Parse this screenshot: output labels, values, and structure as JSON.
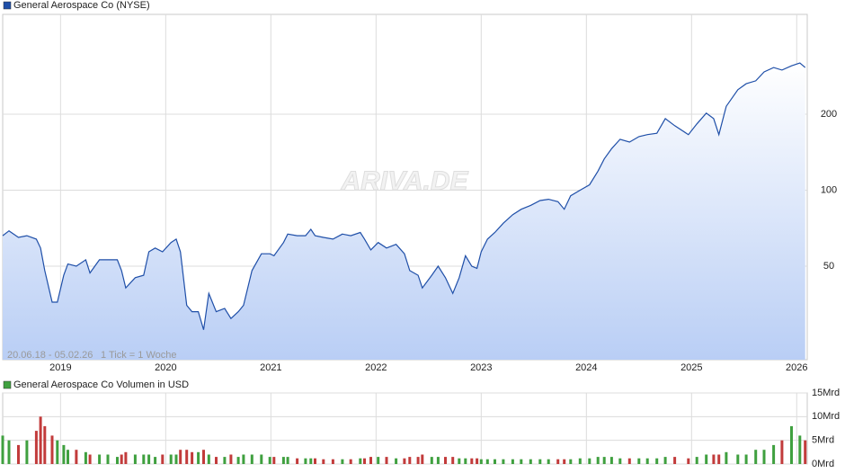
{
  "chart_data": [
    {
      "type": "area",
      "yscale": "log",
      "grid": true,
      "range_note": "20.06.18 - 05.02.26",
      "tick_note": "1 Tick = 1 Woche",
      "watermark": "ARIVA.DE",
      "xlim": [
        2018.45,
        2026.1
      ],
      "xticks": [
        2019,
        2020,
        2021,
        2022,
        2023,
        2024,
        2025,
        2026
      ],
      "ylim": [
        21.3,
        497
      ],
      "yticks": [
        50,
        100,
        200
      ],
      "x": [
        2018.45,
        2018.51,
        2018.6,
        2018.68,
        2018.77,
        2018.81,
        2018.85,
        2018.92,
        2018.97,
        2019.03,
        2019.07,
        2019.15,
        2019.24,
        2019.28,
        2019.37,
        2019.45,
        2019.54,
        2019.58,
        2019.62,
        2019.71,
        2019.79,
        2019.84,
        2019.9,
        2019.97,
        2020.05,
        2020.1,
        2020.14,
        2020.2,
        2020.25,
        2020.31,
        2020.36,
        2020.41,
        2020.48,
        2020.56,
        2020.62,
        2020.69,
        2020.74,
        2020.82,
        2020.91,
        2020.99,
        2021.03,
        2021.12,
        2021.16,
        2021.25,
        2021.33,
        2021.38,
        2021.42,
        2021.5,
        2021.59,
        2021.68,
        2021.76,
        2021.85,
        2021.89,
        2021.95,
        2022.02,
        2022.1,
        2022.19,
        2022.27,
        2022.32,
        2022.4,
        2022.44,
        2022.53,
        2022.59,
        2022.66,
        2022.73,
        2022.79,
        2022.85,
        2022.91,
        2022.96,
        2023.0,
        2023.06,
        2023.13,
        2023.21,
        2023.3,
        2023.38,
        2023.47,
        2023.56,
        2023.64,
        2023.73,
        2023.79,
        2023.85,
        2023.94,
        2024.03,
        2024.11,
        2024.17,
        2024.24,
        2024.32,
        2024.41,
        2024.5,
        2024.58,
        2024.67,
        2024.75,
        2024.84,
        2024.97,
        2025.05,
        2025.14,
        2025.21,
        2025.26,
        2025.33,
        2025.44,
        2025.52,
        2025.61,
        2025.69,
        2025.78,
        2025.86,
        2025.95,
        2026.03,
        2026.08
      ],
      "series": [
        {
          "name": "General Aerospace Co (NYSE)",
          "color": "#1f4fa8",
          "fill": "#b9cef5",
          "values": [
            66,
            69,
            65,
            66,
            64,
            59,
            48,
            36,
            36,
            46,
            51,
            50,
            53,
            47,
            53,
            53,
            53,
            48,
            41,
            45,
            46,
            57,
            59,
            57,
            62,
            64,
            57,
            35,
            33,
            33,
            28,
            39,
            33,
            34,
            31,
            33,
            35,
            48,
            56,
            56,
            55,
            62,
            67,
            66,
            66,
            70,
            66,
            65,
            64,
            67,
            66,
            68,
            64,
            58,
            62,
            59,
            61,
            56,
            48,
            46,
            41,
            46,
            50,
            45,
            39,
            45,
            55,
            50,
            49,
            57,
            64,
            68,
            74,
            80,
            84,
            87,
            91,
            92,
            90,
            84,
            95,
            100,
            105,
            119,
            133,
            146,
            159,
            155,
            163,
            166,
            168,
            192,
            180,
            166,
            183,
            202,
            192,
            166,
            215,
            250,
            264,
            271,
            294,
            306,
            299,
            311,
            319,
            306
          ]
        }
      ]
    },
    {
      "type": "bar",
      "grid": true,
      "up_color": "#3fa03f",
      "down_color": "#c23b3b",
      "xlim": [
        2018.45,
        2026.1
      ],
      "xticks": [
        2019,
        2020,
        2021,
        2022,
        2023,
        2024,
        2025,
        2026
      ],
      "ylim": [
        0,
        15
      ],
      "yticks": [
        {
          "value": 0,
          "label": "0Mrd"
        },
        {
          "value": 5,
          "label": "5Mrd"
        },
        {
          "value": 10,
          "label": "10Mrd"
        },
        {
          "value": 15,
          "label": "15Mrd"
        }
      ],
      "x": [
        2018.45,
        2018.51,
        2018.6,
        2018.68,
        2018.77,
        2018.81,
        2018.85,
        2018.92,
        2018.97,
        2019.03,
        2019.07,
        2019.15,
        2019.24,
        2019.28,
        2019.37,
        2019.45,
        2019.54,
        2019.58,
        2019.62,
        2019.71,
        2019.79,
        2019.84,
        2019.9,
        2019.97,
        2020.05,
        2020.1,
        2020.14,
        2020.2,
        2020.25,
        2020.31,
        2020.36,
        2020.41,
        2020.48,
        2020.56,
        2020.62,
        2020.69,
        2020.74,
        2020.82,
        2020.91,
        2020.99,
        2021.03,
        2021.12,
        2021.16,
        2021.25,
        2021.33,
        2021.38,
        2021.42,
        2021.5,
        2021.59,
        2021.68,
        2021.76,
        2021.85,
        2021.89,
        2021.95,
        2022.02,
        2022.1,
        2022.19,
        2022.27,
        2022.32,
        2022.4,
        2022.44,
        2022.53,
        2022.59,
        2022.66,
        2022.73,
        2022.79,
        2022.85,
        2022.91,
        2022.96,
        2023.0,
        2023.06,
        2023.13,
        2023.21,
        2023.3,
        2023.38,
        2023.47,
        2023.56,
        2023.64,
        2023.73,
        2023.79,
        2023.85,
        2023.94,
        2024.03,
        2024.11,
        2024.17,
        2024.24,
        2024.32,
        2024.41,
        2024.5,
        2024.58,
        2024.67,
        2024.75,
        2024.84,
        2024.97,
        2025.05,
        2025.14,
        2025.21,
        2025.26,
        2025.33,
        2025.44,
        2025.52,
        2025.61,
        2025.69,
        2025.78,
        2025.86,
        2025.95,
        2026.03,
        2026.08
      ],
      "series": [
        {
          "name": "General Aerospace Co Volumen in USD",
          "color": "#3fa03f",
          "values": [
            6,
            5,
            4,
            5,
            7,
            10,
            8,
            6,
            5,
            4,
            3,
            3,
            2.5,
            2,
            2,
            2,
            1.5,
            2,
            2.5,
            2,
            2,
            2,
            1.5,
            2,
            2,
            2,
            3,
            3,
            2.5,
            2.5,
            3,
            2,
            1.5,
            1.5,
            2,
            1.5,
            2,
            2,
            2,
            1.5,
            1.5,
            1.5,
            1.5,
            1.2,
            1.2,
            1.2,
            1.2,
            1,
            1,
            1,
            1,
            1.2,
            1.2,
            1.5,
            1.5,
            1.5,
            1.2,
            1.2,
            1.5,
            1.5,
            2,
            1.5,
            1.5,
            1.5,
            1.5,
            1.2,
            1.2,
            1.2,
            1.2,
            1,
            1,
            1,
            1,
            1,
            1,
            1,
            1,
            1,
            1,
            1,
            1,
            1.2,
            1.2,
            1.5,
            1.5,
            1.5,
            1.2,
            1.2,
            1.2,
            1.2,
            1.2,
            1.5,
            1.5,
            1.2,
            1.5,
            2,
            2,
            2,
            2.5,
            2,
            2,
            3,
            3,
            4,
            5,
            8,
            6,
            5
          ]
        }
      ]
    }
  ]
}
